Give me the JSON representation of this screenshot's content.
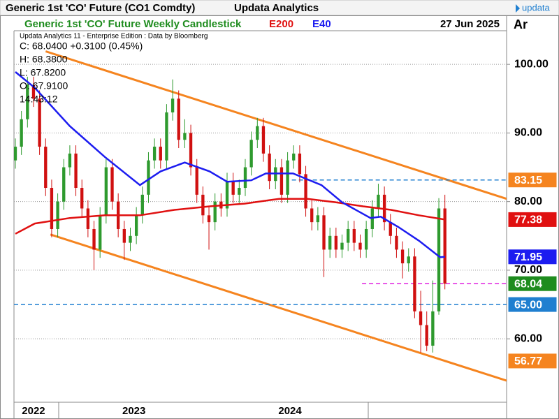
{
  "chart_data": {
    "type": "candlestick",
    "window_title": "Generic 1st 'CO' Future (CO1 Comdty)",
    "app_name": "Updata Analytics",
    "logo": "updata",
    "title": "Generic 1st 'CO' Future Weekly Candlestick",
    "date": "27 Jun 2025",
    "panel_label": "Ar",
    "info": [
      "Updata Analytics 11 - Enterprise Edition : Data by Bloomberg",
      "C: 68.0400  +0.3100 (0.45%)",
      "H: 68.3800",
      "L: 67.8200",
      "O: 67.9100",
      "14:43:12"
    ],
    "up_color": "#2e9a2e",
    "down_color": "#d01010",
    "candles": [
      {
        "open": 86,
        "high": 89.2,
        "low": 84.8,
        "close": 88
      },
      {
        "open": 88,
        "high": 93.2,
        "low": 86.8,
        "close": 92
      },
      {
        "open": 92,
        "high": 98.2,
        "low": 90.8,
        "close": 97
      },
      {
        "open": 97,
        "high": 98.2,
        "low": 93.8,
        "close": 95
      },
      {
        "open": 95,
        "high": 96.2,
        "low": 86.8,
        "close": 88
      },
      {
        "open": 88,
        "high": 89.2,
        "low": 80.8,
        "close": 82
      },
      {
        "open": 82,
        "high": 83.2,
        "low": 74.8,
        "close": 76
      },
      {
        "open": 76,
        "high": 81.2,
        "low": 74.8,
        "close": 80
      },
      {
        "open": 80,
        "high": 86.2,
        "low": 78.8,
        "close": 85
      },
      {
        "open": 85,
        "high": 88.2,
        "low": 83.8,
        "close": 87
      },
      {
        "open": 87,
        "high": 88.2,
        "low": 80.8,
        "close": 82
      },
      {
        "open": 82,
        "high": 83.2,
        "low": 77.8,
        "close": 79
      },
      {
        "open": 79,
        "high": 80.2,
        "low": 74.8,
        "close": 76
      },
      {
        "open": 76,
        "high": 77.2,
        "low": 70,
        "close": 73
      },
      {
        "open": 73,
        "high": 79.2,
        "low": 71.8,
        "close": 78
      },
      {
        "open": 78,
        "high": 86.2,
        "low": 76.8,
        "close": 85
      },
      {
        "open": 85,
        "high": 86.2,
        "low": 78.8,
        "close": 80
      },
      {
        "open": 80,
        "high": 81.2,
        "low": 74.8,
        "close": 76
      },
      {
        "open": 76,
        "high": 77.2,
        "low": 71.5,
        "close": 74
      },
      {
        "open": 74,
        "high": 76.2,
        "low": 72.8,
        "close": 75
      },
      {
        "open": 75,
        "high": 79.2,
        "low": 73.8,
        "close": 78
      },
      {
        "open": 78,
        "high": 82.2,
        "low": 76.8,
        "close": 81
      },
      {
        "open": 81,
        "high": 87.2,
        "low": 79.8,
        "close": 86
      },
      {
        "open": 86,
        "high": 89.2,
        "low": 84.8,
        "close": 88
      },
      {
        "open": 88,
        "high": 89.2,
        "low": 84.8,
        "close": 86
      },
      {
        "open": 86,
        "high": 94.2,
        "low": 84.8,
        "close": 93
      },
      {
        "open": 93,
        "high": 97.8,
        "low": 91.8,
        "close": 95
      },
      {
        "open": 95,
        "high": 96.2,
        "low": 87.8,
        "close": 89
      },
      {
        "open": 89,
        "high": 92,
        "low": 87.8,
        "close": 90
      },
      {
        "open": 90,
        "high": 91.2,
        "low": 83.8,
        "close": 85
      },
      {
        "open": 85,
        "high": 86.2,
        "low": 79.8,
        "close": 81
      },
      {
        "open": 81,
        "high": 82.2,
        "low": 76.8,
        "close": 78
      },
      {
        "open": 78,
        "high": 79.2,
        "low": 73,
        "close": 77
      },
      {
        "open": 77,
        "high": 81.2,
        "low": 75.8,
        "close": 80
      },
      {
        "open": 80,
        "high": 81.2,
        "low": 77.8,
        "close": 79
      },
      {
        "open": 79,
        "high": 84.2,
        "low": 77.8,
        "close": 83
      },
      {
        "open": 83,
        "high": 84.2,
        "low": 79.8,
        "close": 81
      },
      {
        "open": 81,
        "high": 83.2,
        "low": 79.8,
        "close": 82
      },
      {
        "open": 82,
        "high": 86.2,
        "low": 80.8,
        "close": 85
      },
      {
        "open": 85,
        "high": 90.2,
        "low": 83.8,
        "close": 89
      },
      {
        "open": 89,
        "high": 92.2,
        "low": 87.8,
        "close": 91
      },
      {
        "open": 91,
        "high": 92.2,
        "low": 85.8,
        "close": 87
      },
      {
        "open": 87,
        "high": 88.2,
        "low": 81.8,
        "close": 83
      },
      {
        "open": 83,
        "high": 86.2,
        "low": 81.8,
        "close": 85
      },
      {
        "open": 85,
        "high": 86.2,
        "low": 79.8,
        "close": 81
      },
      {
        "open": 81,
        "high": 87.2,
        "low": 79.8,
        "close": 86
      },
      {
        "open": 86,
        "high": 88.2,
        "low": 84.8,
        "close": 87
      },
      {
        "open": 87,
        "high": 88.2,
        "low": 82.8,
        "close": 84
      },
      {
        "open": 84,
        "high": 85.2,
        "low": 77.8,
        "close": 79
      },
      {
        "open": 79,
        "high": 80.2,
        "low": 75.8,
        "close": 77
      },
      {
        "open": 77,
        "high": 79.2,
        "low": 75.8,
        "close": 78
      },
      {
        "open": 78,
        "high": 79.2,
        "low": 69,
        "close": 73
      },
      {
        "open": 73,
        "high": 76.2,
        "low": 71.8,
        "close": 75
      },
      {
        "open": 75,
        "high": 76.2,
        "low": 71.8,
        "close": 73
      },
      {
        "open": 73,
        "high": 75.2,
        "low": 71.8,
        "close": 74
      },
      {
        "open": 74,
        "high": 77.2,
        "low": 72.8,
        "close": 76
      },
      {
        "open": 76,
        "high": 77.2,
        "low": 72.8,
        "close": 74
      },
      {
        "open": 74,
        "high": 75.2,
        "low": 71.8,
        "close": 73
      },
      {
        "open": 73,
        "high": 77.2,
        "low": 71.8,
        "close": 76
      },
      {
        "open": 76,
        "high": 80.2,
        "low": 74.8,
        "close": 79
      },
      {
        "open": 79,
        "high": 82.6,
        "low": 77.8,
        "close": 81
      },
      {
        "open": 81,
        "high": 82.2,
        "low": 75.8,
        "close": 77
      },
      {
        "open": 77,
        "high": 78.2,
        "low": 73.8,
        "close": 75
      },
      {
        "open": 75,
        "high": 76.2,
        "low": 71.8,
        "close": 73
      },
      {
        "open": 73,
        "high": 74.2,
        "low": 68.8,
        "close": 71
      },
      {
        "open": 71,
        "high": 73.2,
        "low": 69.8,
        "close": 72
      },
      {
        "open": 72,
        "high": 73.2,
        "low": 63,
        "close": 64
      },
      {
        "open": 64,
        "high": 67,
        "low": 58,
        "close": 62
      },
      {
        "open": 62,
        "high": 64,
        "low": 58.2,
        "close": 59
      },
      {
        "open": 59,
        "high": 68.5,
        "low": 58,
        "close": 64
      },
      {
        "open": 64,
        "high": 80.5,
        "low": 63.5,
        "close": 79
      },
      {
        "open": 79,
        "high": 81,
        "low": 67.2,
        "close": 68.04
      }
    ],
    "series": [
      {
        "name": "E200",
        "color": "#e01010",
        "x": [
          0,
          3.2,
          9,
          14.8,
          20.6,
          26.3,
          32.1,
          37.9,
          43.6,
          48.3,
          52.9,
          57.5,
          62.1,
          66.7,
          71
        ],
        "values": [
          75.3,
          76.8,
          77.6,
          78,
          78,
          78.8,
          79.3,
          79.7,
          80.4,
          80.4,
          79.9,
          79.3,
          78.8,
          78,
          77.38
        ]
      },
      {
        "name": "E40",
        "color": "#1c1cf0",
        "x": [
          0,
          3.2,
          9,
          14.8,
          20.6,
          24,
          28,
          32.1,
          35,
          39,
          41.4,
          45.9,
          50.6,
          54,
          58.7,
          60.4,
          63.3,
          66.7,
          70.2,
          71
        ],
        "values": [
          98.9,
          96.6,
          91,
          86.5,
          82.4,
          84.4,
          85.7,
          84.4,
          82.9,
          83.1,
          84.1,
          84.1,
          82.4,
          79.9,
          77.6,
          77.8,
          76.3,
          74.3,
          71.9,
          71.95
        ]
      }
    ],
    "trendlines": [
      {
        "color": "#f5841f",
        "x": [
          5,
          81.2
        ],
        "values": [
          101.9,
          80.4
        ]
      },
      {
        "color": "#f5841f",
        "x": [
          5.8,
          81.2
        ],
        "values": [
          75.2,
          53.9
        ]
      }
    ],
    "badges": [
      {
        "value": 83.15,
        "label": "83.15",
        "color": "#f5841f",
        "line_color": "#1f7fd0",
        "line_from": 45.7
      },
      {
        "value": 77.38,
        "label": "77.38",
        "color": "#e01010"
      },
      {
        "value": 71.95,
        "label": "71.95",
        "color": "#1c1cf0"
      },
      {
        "value": 68.04,
        "label": "68.04",
        "color": "#1e8c1e",
        "line_color": "#e020e0",
        "line_from": 57.3
      },
      {
        "value": 65,
        "label": "65.00",
        "color": "#1f7fd0",
        "line_color": "#1f7fd0",
        "line_from": -0.23
      },
      {
        "value": 56.77,
        "label": "56.77",
        "color": "#f5841f"
      }
    ],
    "xlim": [
      -0.23,
      81.2
    ],
    "xticks": [
      {
        "value": 3,
        "label": "2022"
      },
      {
        "value": 19.6,
        "label": "2023"
      },
      {
        "value": 45.4,
        "label": "2024"
      }
    ],
    "ylim": [
      53.2,
      104.9
    ],
    "yticks": [
      {
        "value": 60,
        "label": "60.00"
      },
      {
        "value": 70,
        "label": "70.00"
      },
      {
        "value": 80,
        "label": "80.00"
      },
      {
        "value": 90,
        "label": "90.00"
      },
      {
        "value": 100,
        "label": "100.00"
      }
    ],
    "grid": true
  }
}
